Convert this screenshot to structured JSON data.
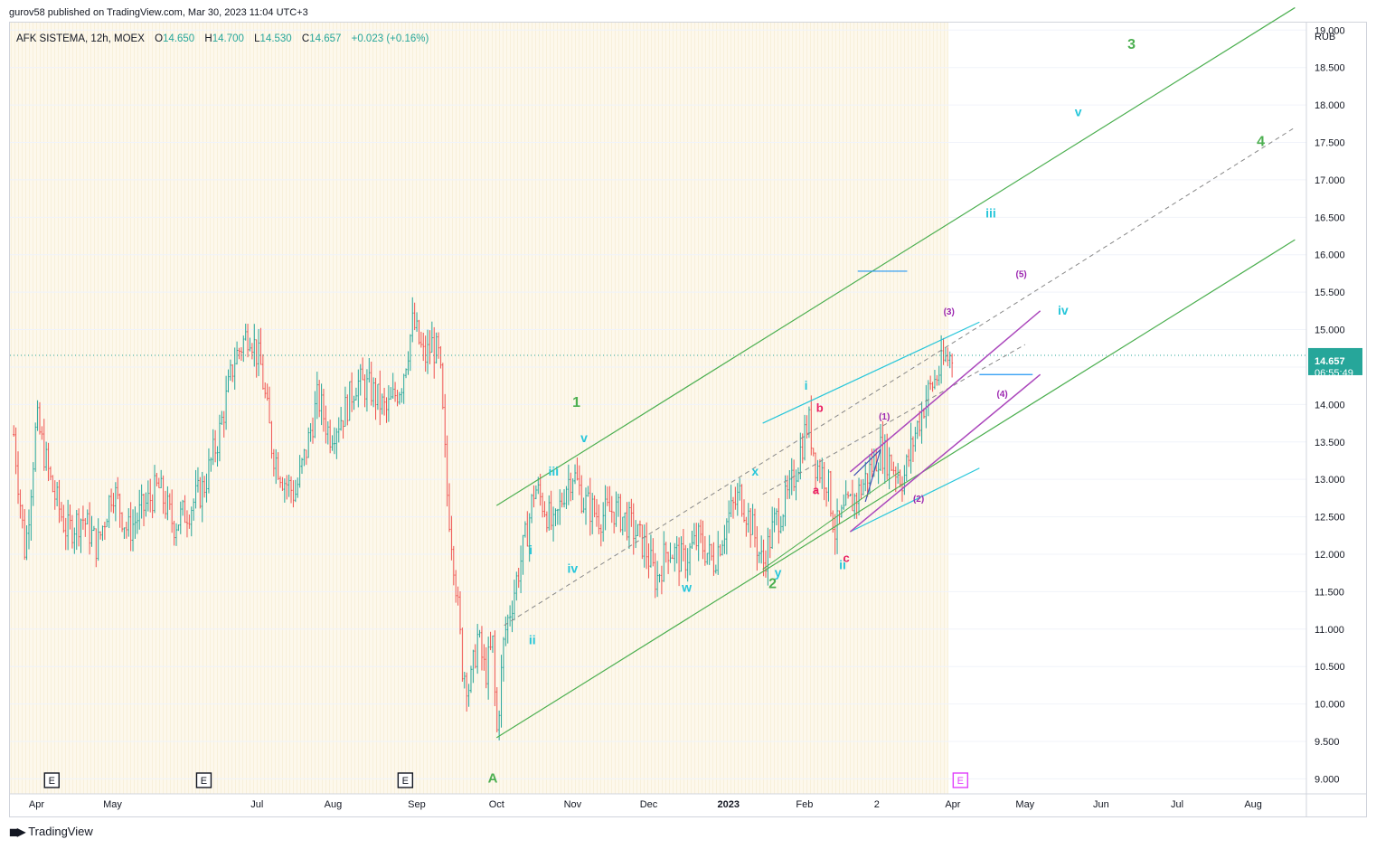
{
  "publish_line": "gurov58 published on TradingView.com, Mar 30, 2023 11:04 UTC+3",
  "brand": "TradingView",
  "brand_icon": "tradingview-logo-icon",
  "chart_data": {
    "type": "candlestick",
    "symbol_line": "AFK SISTEMA, 12h, MOEX",
    "ohlc": {
      "o_label": "O",
      "o": "14.650",
      "h_label": "H",
      "h": "14.700",
      "l_label": "L",
      "l": "14.530",
      "c_label": "C",
      "c": "14.657",
      "chg": "+0.023 (+0.16%)"
    },
    "currency": "RUB",
    "last_price": "14.657",
    "countdown": "06:55:49",
    "ylim": [
      8.8,
      19.1
    ],
    "y_ticks": [
      "9.000",
      "9.500",
      "10.000",
      "10.500",
      "11.000",
      "11.500",
      "12.000",
      "12.500",
      "13.000",
      "13.500",
      "14.000",
      "14.500",
      "15.000",
      "15.500",
      "16.000",
      "16.500",
      "17.000",
      "17.500",
      "18.000",
      "18.500",
      "19.000"
    ],
    "x_ticks": [
      {
        "label": "Apr",
        "t": -2.2
      },
      {
        "label": "May",
        "t": -1.2
      },
      {
        "label": "Jul",
        "t": 0.7
      },
      {
        "label": "Aug",
        "t": 1.7
      },
      {
        "label": "Sep",
        "t": 2.8
      },
      {
        "label": "Oct",
        "t": 3.85
      },
      {
        "label": "Nov",
        "t": 4.85
      },
      {
        "label": "Dec",
        "t": 5.85
      },
      {
        "label": "2023",
        "t": 6.9
      },
      {
        "label": "Feb",
        "t": 7.9
      },
      {
        "label": "2",
        "t": 8.85
      },
      {
        "label": "Apr",
        "t": 9.85
      },
      {
        "label": "May",
        "t": 10.8
      },
      {
        "label": "Jun",
        "t": 11.8
      },
      {
        "label": "Jul",
        "t": 12.8
      },
      {
        "label": "Aug",
        "t": 13.8
      }
    ],
    "earnings_markers": [
      {
        "label": "E",
        "t": -2.0,
        "color": "#131722"
      },
      {
        "label": "E",
        "t": -0.0,
        "color": "#131722"
      },
      {
        "label": "E",
        "t": 2.65,
        "color": "#131722"
      },
      {
        "label": "E",
        "t": 9.95,
        "color": "#e040fb"
      }
    ],
    "price_path": [
      [
        -2.5,
        13.6
      ],
      [
        -2.35,
        12.0
      ],
      [
        -2.2,
        13.8
      ],
      [
        -2.0,
        12.9
      ],
      [
        -1.8,
        12.3
      ],
      [
        -1.6,
        12.5
      ],
      [
        -1.4,
        12.1
      ],
      [
        -1.2,
        12.9
      ],
      [
        -1.0,
        12.3
      ],
      [
        -0.8,
        12.6
      ],
      [
        -0.6,
        12.9
      ],
      [
        -0.4,
        12.4
      ],
      [
        -0.2,
        12.6
      ],
      [
        0.0,
        12.9
      ],
      [
        0.2,
        13.6
      ],
      [
        0.4,
        14.6
      ],
      [
        0.6,
        15.0
      ],
      [
        0.75,
        14.5
      ],
      [
        0.9,
        13.4
      ],
      [
        1.05,
        13.0
      ],
      [
        1.2,
        12.8
      ],
      [
        1.35,
        13.4
      ],
      [
        1.5,
        14.1
      ],
      [
        1.65,
        13.6
      ],
      [
        1.85,
        13.9
      ],
      [
        2.0,
        14.3
      ],
      [
        2.2,
        14.2
      ],
      [
        2.4,
        13.9
      ],
      [
        2.6,
        14.3
      ],
      [
        2.75,
        15.1
      ],
      [
        2.9,
        14.6
      ],
      [
        3.0,
        14.8
      ],
      [
        3.1,
        14.6
      ],
      [
        3.2,
        12.8
      ],
      [
        3.3,
        11.8
      ],
      [
        3.4,
        10.5
      ],
      [
        3.5,
        10.2
      ],
      [
        3.6,
        10.9
      ],
      [
        3.7,
        10.4
      ],
      [
        3.8,
        10.8
      ],
      [
        3.85,
        9.55
      ],
      [
        3.95,
        10.9
      ],
      [
        4.1,
        11.6
      ],
      [
        4.25,
        12.3
      ],
      [
        4.35,
        12.9
      ],
      [
        4.5,
        12.6
      ],
      [
        4.6,
        12.3
      ],
      [
        4.75,
        12.9
      ],
      [
        4.85,
        13.1
      ],
      [
        5.0,
        12.7
      ],
      [
        5.2,
        12.5
      ],
      [
        5.4,
        12.6
      ],
      [
        5.6,
        12.4
      ],
      [
        5.8,
        12.1
      ],
      [
        5.95,
        11.65
      ],
      [
        6.1,
        12.1
      ],
      [
        6.3,
        11.9
      ],
      [
        6.5,
        12.2
      ],
      [
        6.7,
        11.9
      ],
      [
        6.9,
        12.5
      ],
      [
        7.05,
        12.8
      ],
      [
        7.2,
        12.4
      ],
      [
        7.35,
        11.85
      ],
      [
        7.5,
        12.4
      ],
      [
        7.7,
        12.8
      ],
      [
        7.85,
        13.4
      ],
      [
        7.95,
        13.8
      ],
      [
        8.05,
        13.2
      ],
      [
        8.2,
        13.0
      ],
      [
        8.3,
        12.3
      ],
      [
        8.45,
        12.6
      ],
      [
        8.6,
        12.8
      ],
      [
        8.75,
        13.1
      ],
      [
        8.9,
        13.4
      ],
      [
        9.05,
        13.2
      ],
      [
        9.2,
        13.0
      ],
      [
        9.35,
        13.6
      ],
      [
        9.5,
        14.1
      ],
      [
        9.65,
        14.4
      ],
      [
        9.75,
        14.6
      ],
      [
        9.85,
        14.657
      ]
    ],
    "annotations": [
      {
        "text": "1",
        "t": 4.9,
        "p": 13.97,
        "color": "#4caf50",
        "size": 16
      },
      {
        "text": "2",
        "t": 7.48,
        "p": 11.55,
        "color": "#4caf50",
        "size": 16
      },
      {
        "text": "3",
        "t": 12.2,
        "p": 18.75,
        "color": "#4caf50",
        "size": 16
      },
      {
        "text": "4",
        "t": 13.9,
        "p": 17.45,
        "color": "#4caf50",
        "size": 16
      },
      {
        "text": "A",
        "t": 3.8,
        "p": 8.95,
        "color": "#4caf50",
        "size": 15
      },
      {
        "text": "i",
        "t": 4.3,
        "p": 12.0,
        "color": "#26c6da",
        "size": 14
      },
      {
        "text": "ii",
        "t": 4.32,
        "p": 10.8,
        "color": "#26c6da",
        "size": 14
      },
      {
        "text": "iii",
        "t": 4.6,
        "p": 13.05,
        "color": "#26c6da",
        "size": 14
      },
      {
        "text": "iv",
        "t": 4.85,
        "p": 11.75,
        "color": "#26c6da",
        "size": 14
      },
      {
        "text": "v",
        "t": 5.0,
        "p": 13.5,
        "color": "#26c6da",
        "size": 14
      },
      {
        "text": "w",
        "t": 6.35,
        "p": 11.5,
        "color": "#26c6da",
        "size": 14
      },
      {
        "text": "x",
        "t": 7.25,
        "p": 13.05,
        "color": "#26c6da",
        "size": 14
      },
      {
        "text": "y",
        "t": 7.55,
        "p": 11.7,
        "color": "#26c6da",
        "size": 14
      },
      {
        "text": "i",
        "t": 7.92,
        "p": 14.2,
        "color": "#26c6da",
        "size": 14
      },
      {
        "text": "ii",
        "t": 8.4,
        "p": 11.8,
        "color": "#26c6da",
        "size": 14
      },
      {
        "text": "iii",
        "t": 10.35,
        "p": 16.5,
        "color": "#26c6da",
        "size": 14
      },
      {
        "text": "iv",
        "t": 11.3,
        "p": 15.2,
        "color": "#26c6da",
        "size": 14
      },
      {
        "text": "v",
        "t": 11.5,
        "p": 17.85,
        "color": "#26c6da",
        "size": 14
      },
      {
        "text": "a",
        "t": 8.05,
        "p": 12.8,
        "color": "#e91e63",
        "size": 13
      },
      {
        "text": "b",
        "t": 8.1,
        "p": 13.9,
        "color": "#e91e63",
        "size": 13
      },
      {
        "text": "c",
        "t": 8.45,
        "p": 11.9,
        "color": "#e91e63",
        "size": 13
      },
      {
        "text": "(1)",
        "t": 8.95,
        "p": 13.8,
        "color": "#9c27b0",
        "size": 10
      },
      {
        "text": "(2)",
        "t": 9.4,
        "p": 12.7,
        "color": "#9c27b0",
        "size": 10
      },
      {
        "text": "(3)",
        "t": 9.8,
        "p": 15.2,
        "color": "#9c27b0",
        "size": 10
      },
      {
        "text": "(4)",
        "t": 10.5,
        "p": 14.1,
        "color": "#9c27b0",
        "size": 10
      },
      {
        "text": "(5)",
        "t": 10.75,
        "p": 15.7,
        "color": "#9c27b0",
        "size": 10
      }
    ],
    "trend_lines": [
      {
        "color": "#4caf50",
        "width": 1.2,
        "dash": "",
        "from": [
          3.85,
          9.55
        ],
        "to": [
          14.35,
          16.2
        ]
      },
      {
        "color": "#4caf50",
        "width": 1.2,
        "dash": "",
        "from": [
          3.85,
          12.65
        ],
        "to": [
          14.35,
          19.3
        ]
      },
      {
        "color": "#888888",
        "width": 1,
        "dash": "5,4",
        "from": [
          3.95,
          11.05
        ],
        "to": [
          14.35,
          17.7
        ]
      },
      {
        "color": "#888888",
        "width": 1,
        "dash": "5,4",
        "from": [
          7.35,
          12.8
        ],
        "to": [
          10.8,
          14.8
        ]
      },
      {
        "color": "#26c6da",
        "width": 1.2,
        "dash": "",
        "from": [
          7.35,
          13.75
        ],
        "to": [
          10.2,
          15.1
        ]
      },
      {
        "color": "#26c6da",
        "width": 1.2,
        "dash": "",
        "from": [
          8.5,
          12.3
        ],
        "to": [
          10.2,
          13.15
        ]
      },
      {
        "color": "#ab47bc",
        "width": 1.5,
        "dash": "",
        "from": [
          8.5,
          13.1
        ],
        "to": [
          11.0,
          15.25
        ]
      },
      {
        "color": "#ab47bc",
        "width": 1.5,
        "dash": "",
        "from": [
          8.5,
          12.3
        ],
        "to": [
          11.0,
          14.4
        ]
      },
      {
        "color": "#3f51b5",
        "width": 1.2,
        "dash": "",
        "from": [
          8.55,
          13.05
        ],
        "to": [
          8.9,
          13.4
        ]
      },
      {
        "color": "#3f51b5",
        "width": 1.2,
        "dash": "",
        "from": [
          8.7,
          12.7
        ],
        "to": [
          8.9,
          13.4
        ]
      },
      {
        "color": "#4caf50",
        "width": 1,
        "dash": "",
        "from": [
          7.35,
          11.8
        ],
        "to": [
          9.15,
          13.1
        ]
      }
    ],
    "horizontal_segments": [
      {
        "color": "#2196f3",
        "t1": 8.6,
        "t2": 9.25,
        "p": 15.78
      },
      {
        "color": "#2196f3",
        "t1": 10.2,
        "t2": 10.9,
        "p": 14.4
      }
    ],
    "current_price_line_color": "#26a69a"
  }
}
